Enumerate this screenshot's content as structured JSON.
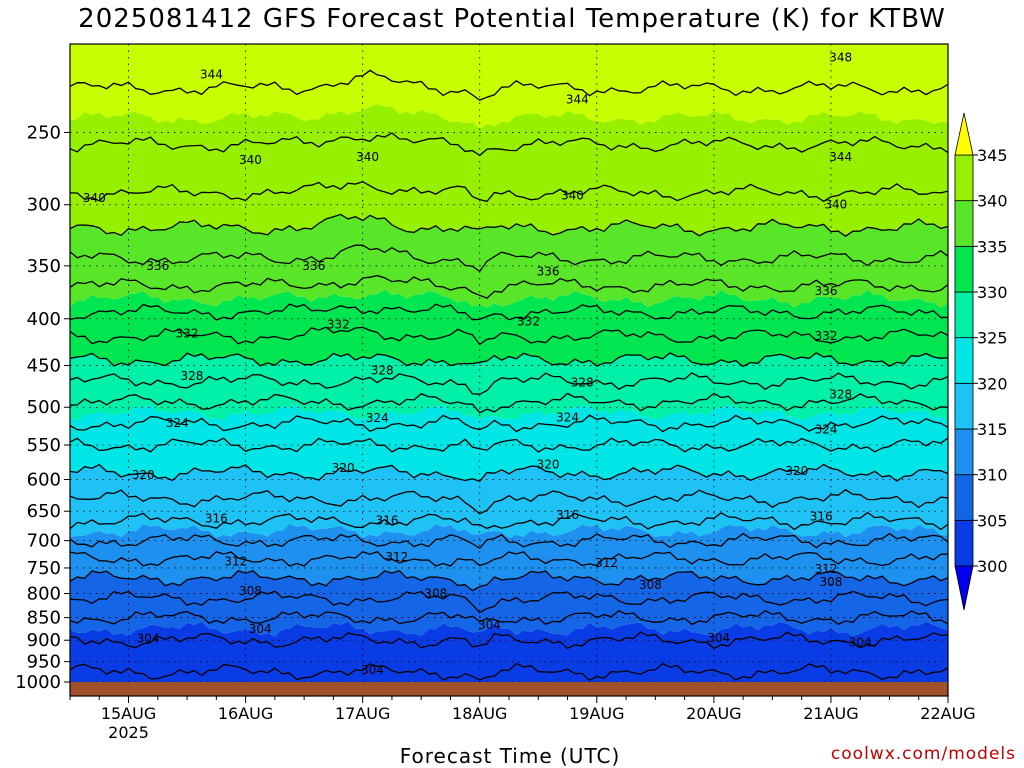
{
  "title": "2025081412 GFS Forecast Potential Temperature (K) for KTBW",
  "credit": "coolwx.com/models",
  "colors": {
    "bands": [
      "#0000ee",
      "#0a3ce6",
      "#1466e6",
      "#1e90f0",
      "#1ec2f5",
      "#00e6e6",
      "#00f0a8",
      "#00e650",
      "#5ae628",
      "#96f000",
      "#c8ff00",
      "#ffff00"
    ],
    "ground": "#a0522d",
    "contour": "#000000"
  },
  "chart_data": {
    "type": "heatmap",
    "xlabel": "Forecast Time (UTC)",
    "ylabel": "",
    "x_ticks": [
      {
        "label": "15AUG",
        "sublabel": "2025",
        "hours": 12
      },
      {
        "label": "16AUG",
        "sublabel": "",
        "hours": 36
      },
      {
        "label": "17AUG",
        "sublabel": "",
        "hours": 60
      },
      {
        "label": "18AUG",
        "sublabel": "",
        "hours": 84
      },
      {
        "label": "19AUG",
        "sublabel": "",
        "hours": 108
      },
      {
        "label": "20AUG",
        "sublabel": "",
        "hours": 132
      },
      {
        "label": "21AUG",
        "sublabel": "",
        "hours": 156
      },
      {
        "label": "22AUG",
        "sublabel": "",
        "hours": 180
      }
    ],
    "x_range_hours": [
      0,
      180
    ],
    "y_ticks": [
      "250",
      "300",
      "350",
      "400",
      "450",
      "500",
      "550",
      "600",
      "650",
      "700",
      "750",
      "800",
      "850",
      "900",
      "950",
      "1000"
    ],
    "y_tick_values": [
      250,
      300,
      350,
      400,
      450,
      500,
      550,
      600,
      650,
      700,
      750,
      800,
      850,
      900,
      950,
      1000
    ],
    "y_range_hPa": [
      200,
      1000
    ],
    "y_scale": "log",
    "grid": true,
    "colorbar": {
      "labels": [
        "300",
        "305",
        "310",
        "315",
        "320",
        "325",
        "330",
        "335",
        "340",
        "345"
      ],
      "levels": [
        300,
        305,
        310,
        315,
        320,
        325,
        330,
        335,
        340,
        345
      ],
      "extend": "both",
      "placement": "right"
    },
    "profile": {
      "pressure_hPa": [
        200,
        250,
        300,
        350,
        400,
        450,
        500,
        550,
        600,
        650,
        700,
        750,
        800,
        850,
        900,
        950,
        1000
      ],
      "theta_K": [
        347.5,
        344.5,
        341.5,
        337.5,
        333.5,
        329.5,
        325.5,
        322,
        319.5,
        317,
        314,
        311,
        308.5,
        306,
        304,
        302.5,
        301.5
      ]
    },
    "contour_levels": [
      300,
      302,
      304,
      306,
      308,
      310,
      312,
      314,
      316,
      318,
      320,
      322,
      324,
      326,
      328,
      330,
      332,
      334,
      336,
      338,
      340,
      342,
      344,
      346,
      348
    ],
    "contour_labels": [
      {
        "text": "344",
        "hours": 29,
        "pressure": 216
      },
      {
        "text": "344",
        "hours": 104,
        "pressure": 230
      },
      {
        "text": "348",
        "hours": 158,
        "pressure": 207
      },
      {
        "text": "340",
        "hours": 37,
        "pressure": 268
      },
      {
        "text": "340",
        "hours": 61,
        "pressure": 266
      },
      {
        "text": "344",
        "hours": 158,
        "pressure": 266
      },
      {
        "text": "340",
        "hours": 5,
        "pressure": 295
      },
      {
        "text": "340",
        "hours": 103,
        "pressure": 293
      },
      {
        "text": "340",
        "hours": 157,
        "pressure": 300
      },
      {
        "text": "336",
        "hours": 18,
        "pressure": 350
      },
      {
        "text": "336",
        "hours": 50,
        "pressure": 350
      },
      {
        "text": "336",
        "hours": 98,
        "pressure": 355
      },
      {
        "text": "336",
        "hours": 155,
        "pressure": 373
      },
      {
        "text": "332",
        "hours": 24,
        "pressure": 415
      },
      {
        "text": "332",
        "hours": 55,
        "pressure": 406
      },
      {
        "text": "332",
        "hours": 94,
        "pressure": 403
      },
      {
        "text": "332",
        "hours": 155,
        "pressure": 418
      },
      {
        "text": "328",
        "hours": 25,
        "pressure": 462
      },
      {
        "text": "328",
        "hours": 64,
        "pressure": 456
      },
      {
        "text": "328",
        "hours": 105,
        "pressure": 470
      },
      {
        "text": "328",
        "hours": 158,
        "pressure": 484
      },
      {
        "text": "324",
        "hours": 22,
        "pressure": 520
      },
      {
        "text": "324",
        "hours": 63,
        "pressure": 514
      },
      {
        "text": "324",
        "hours": 102,
        "pressure": 513
      },
      {
        "text": "324",
        "hours": 155,
        "pressure": 529
      },
      {
        "text": "320",
        "hours": 15,
        "pressure": 593
      },
      {
        "text": "320",
        "hours": 56,
        "pressure": 583
      },
      {
        "text": "320",
        "hours": 98,
        "pressure": 578
      },
      {
        "text": "320",
        "hours": 149,
        "pressure": 587
      },
      {
        "text": "316",
        "hours": 30,
        "pressure": 662
      },
      {
        "text": "316",
        "hours": 65,
        "pressure": 665
      },
      {
        "text": "316",
        "hours": 102,
        "pressure": 656
      },
      {
        "text": "316",
        "hours": 154,
        "pressure": 659
      },
      {
        "text": "312",
        "hours": 34,
        "pressure": 738
      },
      {
        "text": "312",
        "hours": 67,
        "pressure": 730
      },
      {
        "text": "312",
        "hours": 110,
        "pressure": 741
      },
      {
        "text": "312",
        "hours": 155,
        "pressure": 752
      },
      {
        "text": "308",
        "hours": 37,
        "pressure": 795
      },
      {
        "text": "308",
        "hours": 75,
        "pressure": 800
      },
      {
        "text": "308",
        "hours": 119,
        "pressure": 783
      },
      {
        "text": "308",
        "hours": 156,
        "pressure": 777
      },
      {
        "text": "304",
        "hours": 16,
        "pressure": 896
      },
      {
        "text": "304",
        "hours": 39,
        "pressure": 875
      },
      {
        "text": "304",
        "hours": 86,
        "pressure": 866
      },
      {
        "text": "304",
        "hours": 133,
        "pressure": 895
      },
      {
        "text": "304",
        "hours": 162,
        "pressure": 905
      },
      {
        "text": "304",
        "hours": 62,
        "pressure": 970
      }
    ]
  }
}
